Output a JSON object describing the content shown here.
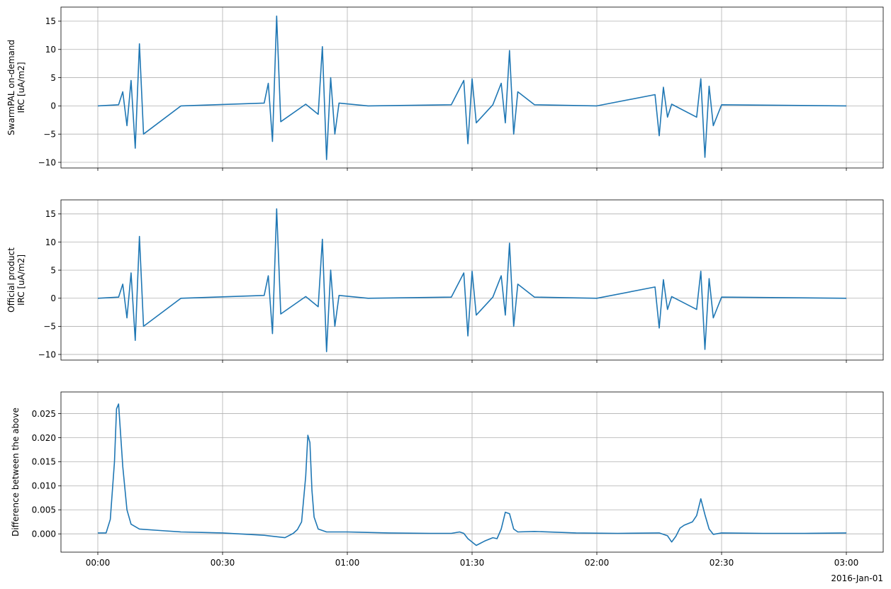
{
  "figure": {
    "date_label": "2016-Jan-01"
  },
  "chart_data": [
    {
      "type": "line",
      "ylabel_lines": [
        "SwarmPAL on-demand",
        "IRC [uA/m2]"
      ],
      "xlim": [
        "00:00",
        "03:00"
      ],
      "ylim": [
        -11,
        17.5
      ],
      "yticks": [
        -10,
        -5,
        0,
        5,
        10,
        15
      ],
      "ytick_labels": [
        "−10",
        "−5",
        "0",
        "5",
        "10",
        "15"
      ],
      "xticks": [
        "00:00",
        "00:30",
        "01:00",
        "01:30",
        "02:00",
        "02:30",
        "03:00"
      ],
      "xtick_labels": [],
      "grid": true,
      "color": "#1f77b4",
      "series": [
        {
          "x": [
            "00:00",
            "00:05",
            "00:06",
            "00:07",
            "00:08",
            "00:09",
            "00:10",
            "00:11",
            "00:20",
            "00:40",
            "00:41",
            "00:42",
            "00:43",
            "00:44",
            "00:50",
            "00:53",
            "00:54",
            "00:55",
            "00:56",
            "00:57",
            "00:58",
            "01:05",
            "01:25",
            "01:28",
            "01:29",
            "01:30",
            "01:31",
            "01:35",
            "01:37",
            "01:38",
            "01:39",
            "01:40",
            "01:41",
            "01:45",
            "02:00",
            "02:14",
            "02:15",
            "02:16",
            "02:17",
            "02:18",
            "02:24",
            "02:25",
            "02:26",
            "02:27",
            "02:28",
            "02:30",
            "03:00"
          ],
          "y": [
            0,
            0.2,
            2.5,
            -3.5,
            4.5,
            -7.5,
            11,
            -5,
            0,
            0.5,
            4,
            -6.3,
            15.9,
            -2.8,
            0.3,
            -1.5,
            10.5,
            -9.5,
            5,
            -5,
            0.5,
            0,
            0.2,
            4.5,
            -6.7,
            4.8,
            -3,
            0.2,
            4,
            -3,
            9.8,
            -5,
            2.5,
            0.2,
            0,
            2,
            -5.3,
            3.3,
            -2,
            0.3,
            -2,
            4.8,
            -9.1,
            3.5,
            -3.5,
            0.2,
            0
          ]
        }
      ]
    },
    {
      "type": "line",
      "ylabel_lines": [
        "Official product",
        "IRC [uA/m2]"
      ],
      "xlim": [
        "00:00",
        "03:00"
      ],
      "ylim": [
        -11,
        17.5
      ],
      "yticks": [
        -10,
        -5,
        0,
        5,
        10,
        15
      ],
      "ytick_labels": [
        "−10",
        "−5",
        "0",
        "5",
        "10",
        "15"
      ],
      "xticks": [
        "00:00",
        "00:30",
        "01:00",
        "01:30",
        "02:00",
        "02:30",
        "03:00"
      ],
      "xtick_labels": [],
      "grid": true,
      "color": "#1f77b4",
      "series": [
        {
          "x": [
            "00:00",
            "00:05",
            "00:06",
            "00:07",
            "00:08",
            "00:09",
            "00:10",
            "00:11",
            "00:20",
            "00:40",
            "00:41",
            "00:42",
            "00:43",
            "00:44",
            "00:50",
            "00:53",
            "00:54",
            "00:55",
            "00:56",
            "00:57",
            "00:58",
            "01:05",
            "01:25",
            "01:28",
            "01:29",
            "01:30",
            "01:31",
            "01:35",
            "01:37",
            "01:38",
            "01:39",
            "01:40",
            "01:41",
            "01:45",
            "02:00",
            "02:14",
            "02:15",
            "02:16",
            "02:17",
            "02:18",
            "02:24",
            "02:25",
            "02:26",
            "02:27",
            "02:28",
            "02:30",
            "03:00"
          ],
          "y": [
            0,
            0.2,
            2.5,
            -3.5,
            4.5,
            -7.5,
            11,
            -5,
            0,
            0.5,
            4,
            -6.3,
            15.9,
            -2.8,
            0.3,
            -1.5,
            10.5,
            -9.5,
            5,
            -5,
            0.5,
            0,
            0.2,
            4.5,
            -6.7,
            4.8,
            -3,
            0.2,
            4,
            -3,
            9.8,
            -5,
            2.5,
            0.2,
            0,
            2,
            -5.3,
            3.3,
            -2,
            0.3,
            -2,
            4.8,
            -9.1,
            3.5,
            -3.5,
            0.2,
            0
          ]
        }
      ]
    },
    {
      "type": "line",
      "ylabel_lines": [
        "Difference between the above"
      ],
      "xlim": [
        "00:00",
        "03:00"
      ],
      "ylim": [
        -0.0038,
        0.0295
      ],
      "yticks": [
        0,
        0.005,
        0.01,
        0.015,
        0.02,
        0.025
      ],
      "ytick_labels": [
        "0.000",
        "0.005",
        "0.010",
        "0.015",
        "0.020",
        "0.025"
      ],
      "xticks": [
        "00:00",
        "00:30",
        "01:00",
        "01:30",
        "02:00",
        "02:30",
        "03:00"
      ],
      "xtick_labels": [
        "00:00",
        "00:30",
        "01:00",
        "01:30",
        "02:00",
        "02:30",
        "03:00"
      ],
      "grid": true,
      "color": "#1f77b4",
      "series": [
        {
          "x": [
            "00:00",
            "00:02",
            "00:03",
            "00:04",
            "00:04:30",
            "00:05",
            "00:06",
            "00:07",
            "00:08",
            "00:10",
            "00:15",
            "00:20",
            "00:25",
            "00:30",
            "00:40",
            "00:45",
            "00:47",
            "00:48",
            "00:49",
            "00:50",
            "00:50:30",
            "00:51",
            "00:51:30",
            "00:52",
            "00:53",
            "00:55",
            "01:00",
            "01:10",
            "01:20",
            "01:25",
            "01:27",
            "01:28",
            "01:29",
            "01:30",
            "01:31",
            "01:33",
            "01:35",
            "01:36",
            "01:37",
            "01:38",
            "01:39",
            "01:40",
            "01:41",
            "01:45",
            "01:55",
            "02:05",
            "02:15",
            "02:17",
            "02:18",
            "02:19",
            "02:20",
            "02:21",
            "02:23",
            "02:24",
            "02:25",
            "02:26",
            "02:27",
            "02:28",
            "02:30",
            "02:40",
            "02:50",
            "03:00"
          ],
          "y": [
            0.0002,
            0.0002,
            0.003,
            0.015,
            0.026,
            0.027,
            0.014,
            0.005,
            0.002,
            0.001,
            0.0007,
            0.0004,
            0.0003,
            0.0002,
            -0.0003,
            -0.0008,
            0.0001,
            0.0009,
            0.0025,
            0.012,
            0.0205,
            0.019,
            0.009,
            0.0035,
            0.001,
            0.0004,
            0.0004,
            0.0002,
            0.0001,
            0.0001,
            0.0004,
            0.0001,
            -0.001,
            -0.0017,
            -0.0024,
            -0.0015,
            -0.0008,
            -0.001,
            0.001,
            0.0045,
            0.0042,
            0.001,
            0.0004,
            0.0005,
            0.0002,
            0.0001,
            0.0002,
            -0.0004,
            -0.0017,
            -0.0005,
            0.0012,
            0.0018,
            0.0025,
            0.0038,
            0.0073,
            0.004,
            0.001,
            -0.0001,
            0.0002,
            0.0001,
            0.0001,
            0.0002
          ]
        }
      ]
    }
  ]
}
